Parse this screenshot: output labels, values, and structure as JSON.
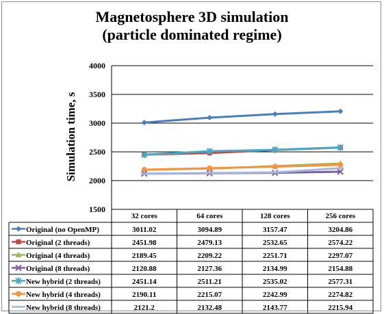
{
  "title_line1": "Magnetosphere 3D simulation",
  "title_line2": "(particle dominated regime)",
  "chart_data": {
    "type": "line",
    "title": "Magnetosphere 3D simulation (particle dominated regime)",
    "ylabel": "Simulation time, s",
    "xlabel": "",
    "categories": [
      "32 cores",
      "64 cores",
      "128 cores",
      "256 cores"
    ],
    "ylim": [
      1500,
      4000
    ],
    "yticks": [
      1500,
      2000,
      2500,
      3000,
      3500,
      4000
    ],
    "grid": true,
    "legend": "data-table",
    "series": [
      {
        "name": "Original (no OpenMP)",
        "color": "#4a7ebb",
        "marker": "diamond",
        "values": [
          3011.02,
          3094.89,
          3157.47,
          3204.86
        ],
        "labels": [
          "3011.02",
          "3094.89",
          "3157.47",
          "3204.86"
        ]
      },
      {
        "name": "Original (2 threads)",
        "color": "#be4b48",
        "marker": "square",
        "values": [
          2451.98,
          2479.13,
          2532.65,
          2574.22
        ],
        "labels": [
          "2451.98",
          "2479.13",
          "2532.65",
          "2574.22"
        ]
      },
      {
        "name": "Original (4 threads)",
        "color": "#98b954",
        "marker": "triangle",
        "values": [
          2189.45,
          2209.22,
          2251.71,
          2297.07
        ],
        "labels": [
          "2189.45",
          "2209.22",
          "2251.71",
          "2297.07"
        ]
      },
      {
        "name": "Original (8 threads)",
        "color": "#7d5fa0",
        "marker": "x",
        "values": [
          2120.88,
          2127.36,
          2134.99,
          2154.88
        ],
        "labels": [
          "2120.88",
          "2127.36",
          "2134.99",
          "2154.88"
        ]
      },
      {
        "name": "New hybrid (2 threads)",
        "color": "#46aac5",
        "marker": "star",
        "values": [
          2451.14,
          2511.21,
          2535.02,
          2577.31
        ],
        "labels": [
          "2451.14",
          "2511.21",
          "2535.02",
          "2577.31"
        ]
      },
      {
        "name": "New hybrid (4 threads)",
        "color": "#f69240",
        "marker": "circle",
        "values": [
          2190.11,
          2215.07,
          2242.99,
          2274.82
        ],
        "labels": [
          "2190.11",
          "2215.07",
          "2242.99",
          "2274.82"
        ]
      },
      {
        "name": "New hybrid (8 threads)",
        "color": "#a5b8e0",
        "marker": "dash",
        "values": [
          2121.2,
          2132.48,
          2143.77,
          2215.94
        ],
        "labels": [
          "2121.2",
          "2132.48",
          "2143.77",
          "2215.94"
        ]
      }
    ]
  }
}
